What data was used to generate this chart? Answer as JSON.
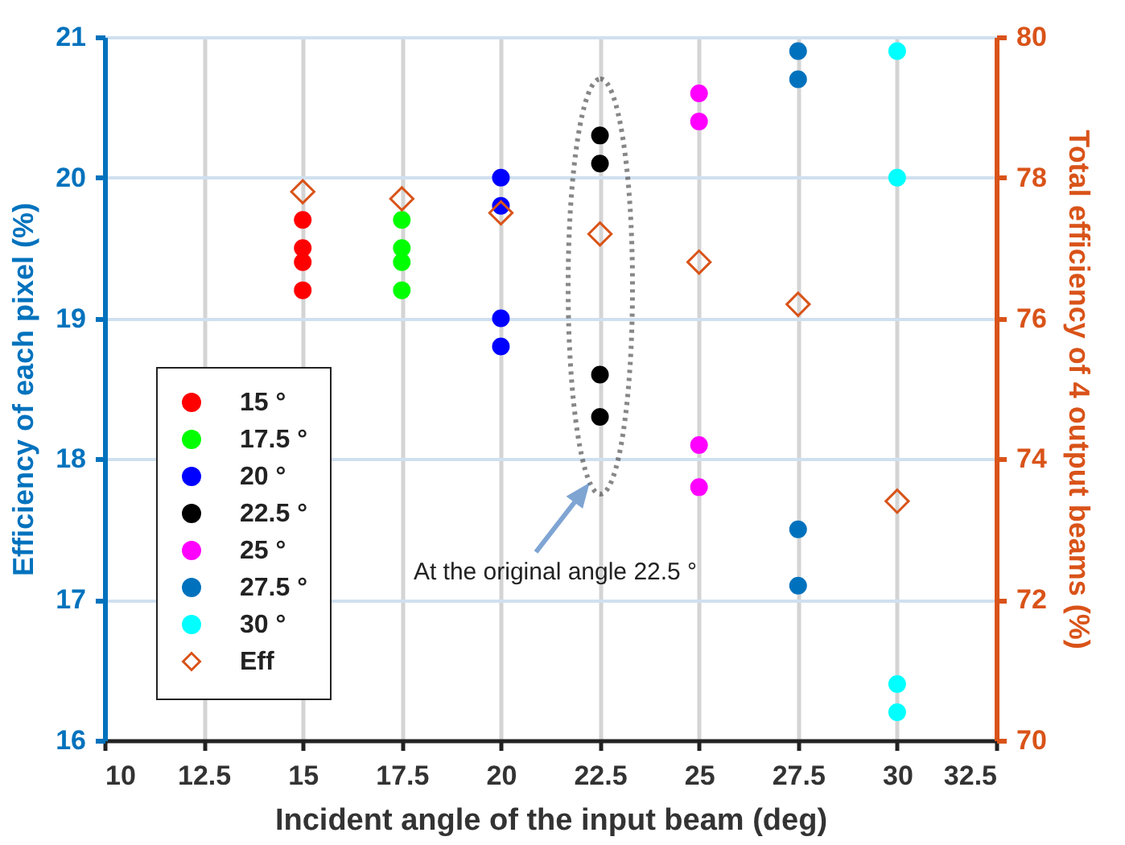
{
  "chart_data": {
    "type": "scatter",
    "xlabel": "Incident angle of the input beam (deg)",
    "ylabel": "Efficiency of each pixel (%)",
    "y2label": "Total efficiency of 4 output beams (%)",
    "xlim": [
      10,
      32.5
    ],
    "xticks": [
      10,
      12.5,
      15,
      17.5,
      20,
      22.5,
      25,
      27.5,
      30,
      32.5
    ],
    "ylim": [
      16,
      21
    ],
    "yticks": [
      16,
      17,
      18,
      19,
      20,
      21
    ],
    "y2lim": [
      70,
      80
    ],
    "y2ticks": [
      70,
      72,
      74,
      76,
      78,
      80
    ],
    "grid": true,
    "legend": "left",
    "marker": "circle",
    "series": [
      {
        "name": "15 °",
        "color": "#ff0000",
        "x": [
          15,
          15,
          15,
          15
        ],
        "values": [
          19.7,
          19.5,
          19.4,
          19.2
        ]
      },
      {
        "name": "17.5 °",
        "color": "#00ff00",
        "x": [
          17.5,
          17.5,
          17.5,
          17.5
        ],
        "values": [
          19.7,
          19.5,
          19.4,
          19.2
        ]
      },
      {
        "name": "20 °",
        "color": "#0000ff",
        "x": [
          20,
          20,
          20,
          20
        ],
        "values": [
          20.0,
          19.8,
          19.0,
          18.8
        ]
      },
      {
        "name": "22.5 °",
        "color": "#000000",
        "x": [
          22.5,
          22.5,
          22.5,
          22.5
        ],
        "values": [
          20.3,
          20.1,
          18.6,
          18.3
        ]
      },
      {
        "name": "25 °",
        "color": "#ff00ff",
        "x": [
          25,
          25,
          25,
          25
        ],
        "values": [
          20.6,
          20.4,
          18.1,
          17.8
        ]
      },
      {
        "name": "27.5 °",
        "color": "#0072bd",
        "x": [
          27.5,
          27.5,
          27.5,
          27.5
        ],
        "values": [
          20.9,
          20.7,
          17.5,
          17.1
        ]
      },
      {
        "name": "30 °",
        "color": "#00ffff",
        "x": [
          30,
          30,
          30,
          30
        ],
        "values": [
          20.9,
          20.0,
          16.4,
          16.2
        ]
      },
      {
        "name": "Eff",
        "color": "#d95319",
        "axis": "y2",
        "marker": "diamond",
        "x": [
          15,
          17.5,
          20,
          22.5,
          25,
          27.5,
          30
        ],
        "values": [
          77.8,
          77.7,
          77.5,
          77.2,
          76.8,
          76.2,
          73.4
        ]
      }
    ],
    "annotations": [
      "At the original angle 22.5 °"
    ]
  }
}
